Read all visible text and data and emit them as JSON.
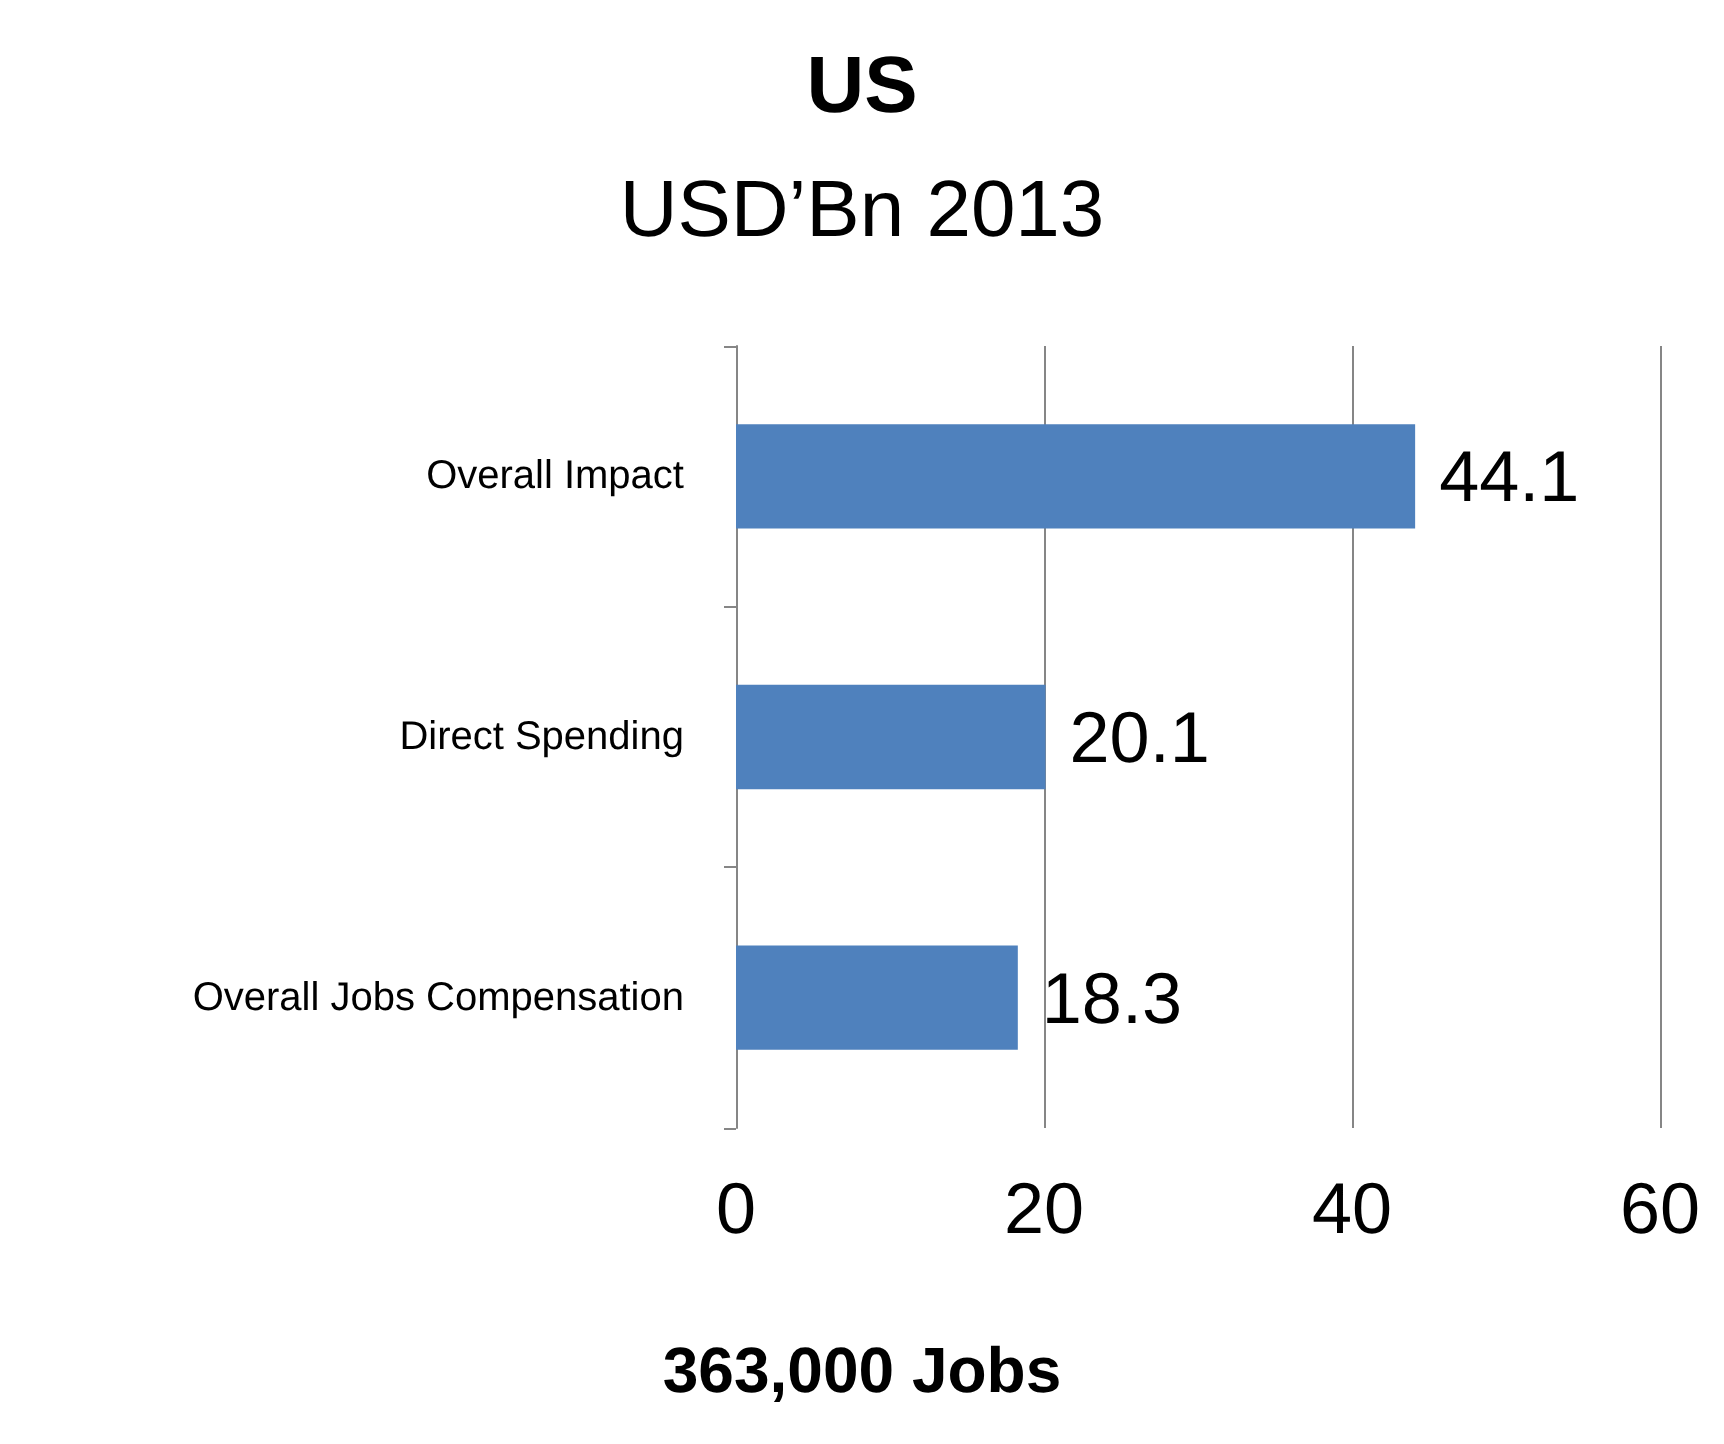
{
  "chart_data": {
    "type": "bar",
    "orientation": "horizontal",
    "title": "US",
    "subtitle": "USD’Bn 2013",
    "categories": [
      "Overall Impact",
      "Direct Spending",
      "Overall Jobs Compensation"
    ],
    "values": [
      44.1,
      20.1,
      18.3
    ],
    "color": "#4f81bd",
    "xlim": [
      0,
      60
    ],
    "xticks": [
      0,
      20,
      40,
      60
    ],
    "grid": "x",
    "data_labels": true,
    "annotations": [
      "363,000 Jobs"
    ]
  }
}
